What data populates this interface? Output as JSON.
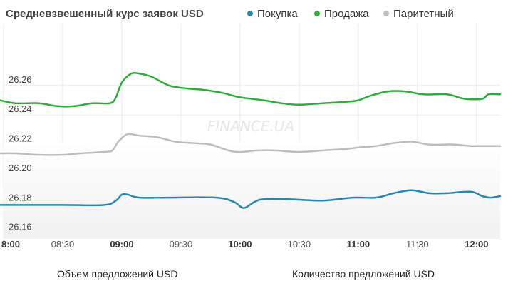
{
  "colors": {
    "purchase": "#2a87b1",
    "sale": "#2eac3c",
    "parity": "#bdbdbd",
    "grid": "#e8e8e8",
    "tick_text": "#555555"
  },
  "chart_data": {
    "type": "line",
    "title": "Средневзвешенный курс заявок USD",
    "xlabel": "",
    "ylabel": "",
    "x_ticks": [
      {
        "label": "8:00",
        "t": 8.0,
        "bold": true
      },
      {
        "label": "08:30",
        "t": 8.5,
        "bold": false
      },
      {
        "label": "09:00",
        "t": 9.0,
        "bold": true
      },
      {
        "label": "09:30",
        "t": 9.5,
        "bold": false
      },
      {
        "label": "10:00",
        "t": 10.0,
        "bold": true
      },
      {
        "label": "10:30",
        "t": 10.5,
        "bold": false
      },
      {
        "label": "11:00",
        "t": 11.0,
        "bold": true
      },
      {
        "label": "11:30",
        "t": 11.5,
        "bold": false
      },
      {
        "label": "12:00",
        "t": 12.0,
        "bold": true
      }
    ],
    "xlim": [
      8.0,
      12.2
    ],
    "ylim": [
      26.156,
      26.302
    ],
    "y_ticks": [
      "26.16",
      "26.18",
      "26.20",
      "26.22",
      "26.24",
      "26.26"
    ],
    "grid": true,
    "legend_position": "top",
    "series": [
      {
        "name": "Покупка",
        "color_key": "purchase",
        "points": [
          [
            7.97,
            26.179
          ],
          [
            8.5,
            26.179
          ],
          [
            8.85,
            26.179
          ],
          [
            8.95,
            26.182
          ],
          [
            9.0,
            26.186
          ],
          [
            9.05,
            26.186
          ],
          [
            9.15,
            26.184
          ],
          [
            9.4,
            26.184
          ],
          [
            9.8,
            26.184
          ],
          [
            9.95,
            26.181
          ],
          [
            10.03,
            26.177
          ],
          [
            10.12,
            26.181
          ],
          [
            10.2,
            26.183
          ],
          [
            10.4,
            26.183
          ],
          [
            10.7,
            26.182
          ],
          [
            10.95,
            26.184
          ],
          [
            11.15,
            26.184
          ],
          [
            11.3,
            26.187
          ],
          [
            11.45,
            26.189
          ],
          [
            11.6,
            26.187
          ],
          [
            11.75,
            26.187
          ],
          [
            11.95,
            26.188
          ],
          [
            12.05,
            26.185
          ],
          [
            12.12,
            26.184
          ],
          [
            12.2,
            26.185
          ]
        ]
      },
      {
        "name": "Продажа",
        "color_key": "sale",
        "points": [
          [
            7.97,
            26.25
          ],
          [
            8.1,
            26.248
          ],
          [
            8.3,
            26.248
          ],
          [
            8.45,
            26.246
          ],
          [
            8.6,
            26.246
          ],
          [
            8.75,
            26.248
          ],
          [
            8.9,
            26.248
          ],
          [
            8.95,
            26.252
          ],
          [
            9.0,
            26.262
          ],
          [
            9.08,
            26.268
          ],
          [
            9.15,
            26.268
          ],
          [
            9.25,
            26.266
          ],
          [
            9.4,
            26.26
          ],
          [
            9.55,
            26.258
          ],
          [
            9.7,
            26.257
          ],
          [
            9.85,
            26.255
          ],
          [
            10.0,
            26.252
          ],
          [
            10.2,
            26.25
          ],
          [
            10.35,
            26.248
          ],
          [
            10.5,
            26.247
          ],
          [
            10.7,
            26.248
          ],
          [
            10.9,
            26.249
          ],
          [
            11.0,
            26.25
          ],
          [
            11.1,
            26.253
          ],
          [
            11.25,
            26.256
          ],
          [
            11.4,
            26.256
          ],
          [
            11.55,
            26.254
          ],
          [
            11.75,
            26.254
          ],
          [
            11.9,
            26.251
          ],
          [
            12.05,
            26.251
          ],
          [
            12.1,
            26.254
          ],
          [
            12.2,
            26.254
          ]
        ]
      },
      {
        "name": "Паритетный",
        "color_key": "parity",
        "points": [
          [
            7.97,
            26.214
          ],
          [
            8.1,
            26.214
          ],
          [
            8.3,
            26.213
          ],
          [
            8.5,
            26.213
          ],
          [
            8.65,
            26.214
          ],
          [
            8.85,
            26.215
          ],
          [
            8.92,
            26.216
          ],
          [
            8.97,
            26.222
          ],
          [
            9.05,
            26.227
          ],
          [
            9.15,
            26.226
          ],
          [
            9.3,
            26.225
          ],
          [
            9.45,
            26.222
          ],
          [
            9.6,
            26.221
          ],
          [
            9.75,
            26.22
          ],
          [
            9.9,
            26.216
          ],
          [
            10.0,
            26.215
          ],
          [
            10.15,
            26.216
          ],
          [
            10.3,
            26.216
          ],
          [
            10.5,
            26.215
          ],
          [
            10.7,
            26.216
          ],
          [
            10.9,
            26.217
          ],
          [
            11.0,
            26.218
          ],
          [
            11.15,
            26.219
          ],
          [
            11.3,
            26.221
          ],
          [
            11.45,
            26.222
          ],
          [
            11.6,
            26.22
          ],
          [
            11.8,
            26.22
          ],
          [
            11.95,
            26.219
          ],
          [
            12.05,
            26.219
          ],
          [
            12.2,
            26.219
          ]
        ]
      }
    ]
  },
  "watermark": "FINANCE.UA",
  "bottom_tabs": {
    "volume_label": "Объем предложений USD",
    "count_label": "Количество предложений USD"
  }
}
